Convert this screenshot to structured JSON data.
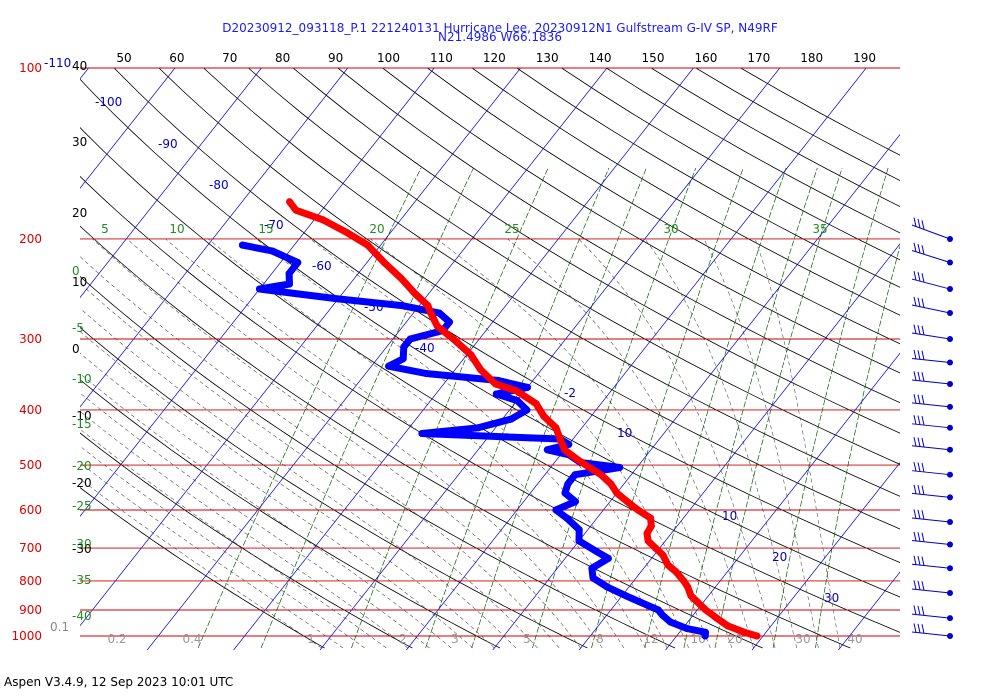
{
  "header": {
    "line1": "D20230912_093118_P.1 221240131 Hurricane Lee, 20230912N1 Gulfstream G-IV SP, N49RF",
    "line2": "N21.4986 W66.1836"
  },
  "footer": "Aspen V3.4.9, 12 Sep 2023  10:01 UTC",
  "colors": {
    "temperature": "#ff0000",
    "dewpoint": "#0000ff",
    "isobar": "#cc0000",
    "isotherm": "#0000cc",
    "dry_adiabat": "#000000",
    "moist_adiabat": "#555555",
    "mixing_ratio": "#006400",
    "wind_barb": "#0000cc"
  },
  "chart_data": {
    "type": "line",
    "chart_kind": "skew-T log-P sounding",
    "pressure_range_hPa": [
      1000,
      100
    ],
    "pressure_labels": [
      {
        "p": 100,
        "text": "100"
      },
      {
        "p": 200,
        "text": "200"
      },
      {
        "p": 300,
        "text": "300"
      },
      {
        "p": 400,
        "text": "400"
      },
      {
        "p": 500,
        "text": "500"
      },
      {
        "p": 600,
        "text": "600"
      },
      {
        "p": 700,
        "text": "700"
      },
      {
        "p": 800,
        "text": "800"
      },
      {
        "p": 900,
        "text": "900"
      },
      {
        "p": 1000,
        "text": "1000"
      }
    ],
    "height_km_labels": [
      {
        "p": 100,
        "text": "-110"
      },
      {
        "p": 1000,
        "text": "0.1"
      }
    ],
    "isotherm_labels": [
      "-100",
      "-90",
      "-80",
      "-70",
      "-60",
      "-50",
      "-40",
      "-2",
      "10",
      "10",
      "20",
      "30"
    ],
    "top_scale_labels": [
      "50",
      "60",
      "70",
      "80",
      "90",
      "100",
      "110",
      "120",
      "130",
      "140",
      "150",
      "160",
      "170",
      "180",
      "190"
    ],
    "left_scale_labels": [
      "40",
      "30",
      "20",
      "10",
      "0",
      "-10",
      "-20",
      "-30"
    ],
    "mixing_ratio_labels": [
      "5",
      "10",
      "15",
      "20",
      "25",
      "30",
      "35"
    ],
    "left_green_labels": [
      "0",
      "-5",
      "-10",
      "-15",
      "-20",
      "-25",
      "-30",
      "-35",
      "-40"
    ],
    "bottom_labels": [
      "0.2",
      "0.4",
      "1",
      "2",
      "3",
      "5",
      "8",
      "12",
      "16",
      "20",
      "30",
      "40"
    ],
    "series": [
      {
        "key": "temperature",
        "points": [
          {
            "p": 1000,
            "t": 29.3
          },
          {
            "p": 985,
            "t": 27.5
          },
          {
            "p": 960,
            "t": 25.0
          },
          {
            "p": 930,
            "t": 23.0
          },
          {
            "p": 900,
            "t": 21.0
          },
          {
            "p": 870,
            "t": 19.2
          },
          {
            "p": 850,
            "t": 18.0
          },
          {
            "p": 820,
            "t": 16.8
          },
          {
            "p": 800,
            "t": 15.8
          },
          {
            "p": 770,
            "t": 14.0
          },
          {
            "p": 750,
            "t": 12.5
          },
          {
            "p": 720,
            "t": 11.0
          },
          {
            "p": 700,
            "t": 9.5
          },
          {
            "p": 680,
            "t": 8.0
          },
          {
            "p": 660,
            "t": 7.2
          },
          {
            "p": 640,
            "t": 7.0
          },
          {
            "p": 620,
            "t": 6.2
          },
          {
            "p": 600,
            "t": 4.0
          },
          {
            "p": 580,
            "t": 2.0
          },
          {
            "p": 560,
            "t": 0.0
          },
          {
            "p": 540,
            "t": -1.5
          },
          {
            "p": 520,
            "t": -3.5
          },
          {
            "p": 505,
            "t": -5.5
          },
          {
            "p": 490,
            "t": -7.5
          },
          {
            "p": 470,
            "t": -10.0
          },
          {
            "p": 450,
            "t": -11.5
          },
          {
            "p": 430,
            "t": -13.0
          },
          {
            "p": 410,
            "t": -15.5
          },
          {
            "p": 390,
            "t": -17.5
          },
          {
            "p": 370,
            "t": -21.0
          },
          {
            "p": 360,
            "t": -24.0
          },
          {
            "p": 340,
            "t": -27.0
          },
          {
            "p": 320,
            "t": -29.5
          },
          {
            "p": 300,
            "t": -33.0
          },
          {
            "p": 285,
            "t": -36.0
          },
          {
            "p": 270,
            "t": -38.0
          },
          {
            "p": 262,
            "t": -39.0
          },
          {
            "p": 250,
            "t": -41.5
          },
          {
            "p": 235,
            "t": -44.5
          },
          {
            "p": 220,
            "t": -48.0
          },
          {
            "p": 205,
            "t": -51.5
          },
          {
            "p": 195,
            "t": -55.0
          },
          {
            "p": 185,
            "t": -59.0
          },
          {
            "p": 178,
            "t": -63.0
          },
          {
            "p": 172,
            "t": -64.5
          }
        ]
      },
      {
        "key": "dewpoint",
        "points": [
          {
            "p": 1000,
            "t": 23.3
          },
          {
            "p": 985,
            "t": 23.0
          },
          {
            "p": 970,
            "t": 20.5
          },
          {
            "p": 945,
            "t": 18.0
          },
          {
            "p": 920,
            "t": 16.5
          },
          {
            "p": 900,
            "t": 15.5
          },
          {
            "p": 870,
            "t": 12.5
          },
          {
            "p": 850,
            "t": 10.5
          },
          {
            "p": 820,
            "t": 7.5
          },
          {
            "p": 790,
            "t": 5.0
          },
          {
            "p": 760,
            "t": 4.0
          },
          {
            "p": 730,
            "t": 5.0
          },
          {
            "p": 710,
            "t": 3.0
          },
          {
            "p": 680,
            "t": 0.0
          },
          {
            "p": 650,
            "t": -1.0
          },
          {
            "p": 620,
            "t": -3.5
          },
          {
            "p": 600,
            "t": -5.5
          },
          {
            "p": 580,
            "t": -4.0
          },
          {
            "p": 560,
            "t": -6.0
          },
          {
            "p": 540,
            "t": -6.5
          },
          {
            "p": 520,
            "t": -6.5
          },
          {
            "p": 505,
            "t": -2.0
          },
          {
            "p": 495,
            "t": -7.0
          },
          {
            "p": 480,
            "t": -9.0
          },
          {
            "p": 470,
            "t": -12.0
          },
          {
            "p": 460,
            "t": -10.0
          },
          {
            "p": 450,
            "t": -11.5
          },
          {
            "p": 448,
            "t": -15.0
          },
          {
            "p": 440,
            "t": -28.0
          },
          {
            "p": 430,
            "t": -22.0
          },
          {
            "p": 415,
            "t": -19.0
          },
          {
            "p": 400,
            "t": -18.0
          },
          {
            "p": 385,
            "t": -20.0
          },
          {
            "p": 375,
            "t": -23.0
          },
          {
            "p": 365,
            "t": -20.0
          },
          {
            "p": 355,
            "t": -24.0
          },
          {
            "p": 345,
            "t": -33.0
          },
          {
            "p": 335,
            "t": -38.0
          },
          {
            "p": 325,
            "t": -37.0
          },
          {
            "p": 310,
            "t": -38.0
          },
          {
            "p": 300,
            "t": -38.0
          },
          {
            "p": 290,
            "t": -35.0
          },
          {
            "p": 280,
            "t": -35.0
          },
          {
            "p": 270,
            "t": -37.0
          },
          {
            "p": 262,
            "t": -42.0
          },
          {
            "p": 255,
            "t": -50.0
          },
          {
            "p": 250,
            "t": -55.0
          },
          {
            "p": 245,
            "t": -60.0
          },
          {
            "p": 240,
            "t": -57.0
          },
          {
            "p": 230,
            "t": -58.0
          },
          {
            "p": 220,
            "t": -58.0
          },
          {
            "p": 210,
            "t": -62.0
          },
          {
            "p": 205,
            "t": -66.0
          }
        ]
      }
    ],
    "wind_barb_pressures": [
      200,
      220,
      245,
      270,
      300,
      330,
      360,
      395,
      430,
      470,
      520,
      570,
      630,
      690,
      760,
      840,
      930,
      1000
    ]
  }
}
